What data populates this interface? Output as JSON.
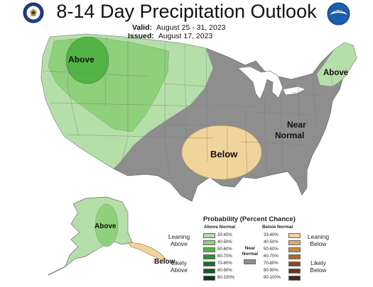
{
  "header": {
    "title": "8-14 Day Precipitation Outlook",
    "valid_label": "Valid:",
    "valid_value": "August 25 - 31, 2023",
    "issued_label": "Issued:",
    "issued_value": "August 17, 2023"
  },
  "logos": {
    "left": "doc-seal-icon",
    "right": "noaa-logo-icon",
    "right_text": "NOAA"
  },
  "map_labels": {
    "above_northwest": "Above",
    "above_northeast": "Above",
    "below_plains": "Below",
    "near_normal": "Near Normal",
    "above_alaska": "Above",
    "below_alaska": "Below"
  },
  "legend": {
    "title": "Probability (Percent Chance)",
    "above_header": "Above Normal",
    "below_header": "Below Normal",
    "near_normal": "Near Normal",
    "leaning_above": "Leaning Above",
    "likely_above": "Likely Above",
    "leaning_below": "Leaning Below",
    "likely_below": "Likely Below",
    "above_bins": [
      {
        "label": "33-40%",
        "color": "#b5dfa9"
      },
      {
        "label": "40-50%",
        "color": "#8fd07c"
      },
      {
        "label": "50-60%",
        "color": "#52b445"
      },
      {
        "label": "60-70%",
        "color": "#2f8f3a"
      },
      {
        "label": "70-80%",
        "color": "#1f6b2c"
      },
      {
        "label": "80-90%",
        "color": "#175a25"
      },
      {
        "label": "90-100%",
        "color": "#0f3d17"
      }
    ],
    "below_bins": [
      {
        "label": "33-40%",
        "color": "#f0d49a"
      },
      {
        "label": "40-50%",
        "color": "#dcaa6a"
      },
      {
        "label": "50-60%",
        "color": "#c98a42"
      },
      {
        "label": "60-70%",
        "color": "#a96a2e"
      },
      {
        "label": "70-80%",
        "color": "#8a4a24"
      },
      {
        "label": "80-90%",
        "color": "#6b3420"
      },
      {
        "label": "90-100%",
        "color": "#4a2418"
      }
    ],
    "near_normal_color": "#8e8e8e"
  },
  "colors": {
    "near_normal": "#8e8e8e",
    "leaning_above": "#b5dfa9",
    "above_40_50": "#8fd07c",
    "above_50_60": "#52b445",
    "leaning_below": "#f0d49a",
    "lakes": "#ffffff"
  }
}
